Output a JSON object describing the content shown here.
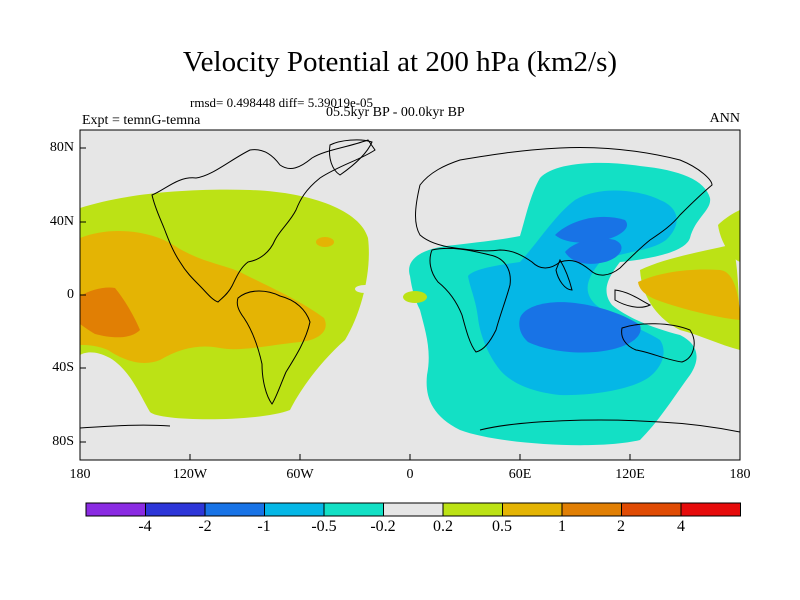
{
  "plot": {
    "title": "Velocity Potential at 200 hPa (km2/s)",
    "stats_line": "rmsd= 0.498448 diff= 5.39019e-05",
    "experiment": "Expt = temnG-temna",
    "period": "05.5kyr BP - 00.0kyr BP",
    "season": "ANN"
  },
  "axes": {
    "lat_ticks": [
      {
        "label": "80N",
        "lat": 80
      },
      {
        "label": "40N",
        "lat": 40
      },
      {
        "label": "0",
        "lat": 0
      },
      {
        "label": "40S",
        "lat": -40
      },
      {
        "label": "80S",
        "lat": -80
      }
    ],
    "lon_ticks": [
      {
        "label": "180",
        "lon": -180
      },
      {
        "label": "120W",
        "lon": -120
      },
      {
        "label": "60W",
        "lon": -60
      },
      {
        "label": "0",
        "lon": 0
      },
      {
        "label": "60E",
        "lon": 60
      },
      {
        "label": "120E",
        "lon": 120
      },
      {
        "label": "180",
        "lon": 180
      }
    ],
    "lat_range": [
      -90,
      90
    ],
    "lon_range": [
      -180,
      180
    ]
  },
  "colorbar": {
    "colors": [
      "#8a2be2",
      "#2d36d8",
      "#1873e6",
      "#05b7e6",
      "#13e0c5",
      "#e6e6e6",
      "#bce215",
      "#e4b404",
      "#e17f04",
      "#e04b04",
      "#e60b0b"
    ],
    "labels": [
      "-4",
      "-2",
      "-1",
      "-0.5",
      "-0.2",
      "0.2",
      "0.5",
      "1",
      "2",
      "4"
    ]
  },
  "chart_data": {
    "type": "contour-map",
    "variable": "Velocity Potential at 200 hPa",
    "units": "km2/s",
    "contour_levels": [
      -4,
      -2,
      -1,
      -0.5,
      -0.2,
      0.2,
      0.5,
      1,
      2,
      4
    ],
    "projection": "cylindrical equidistant",
    "regions": [
      {
        "name": "east-pacific-max",
        "lon": -160,
        "lat": -5,
        "range": [
          1,
          2
        ]
      },
      {
        "name": "americas-positive",
        "lon": -100,
        "lat": 10,
        "range": [
          0.5,
          1
        ]
      },
      {
        "name": "indian-ocean-min",
        "lon": 75,
        "lat": -15,
        "range": [
          -1,
          -0.5
        ]
      },
      {
        "name": "south-asia-min",
        "lon": 75,
        "lat": 25,
        "range": [
          -1,
          -0.5
        ]
      },
      {
        "name": "maritime-continent-max",
        "lon": 150,
        "lat": 5,
        "range": [
          0.5,
          1
        ]
      }
    ]
  }
}
